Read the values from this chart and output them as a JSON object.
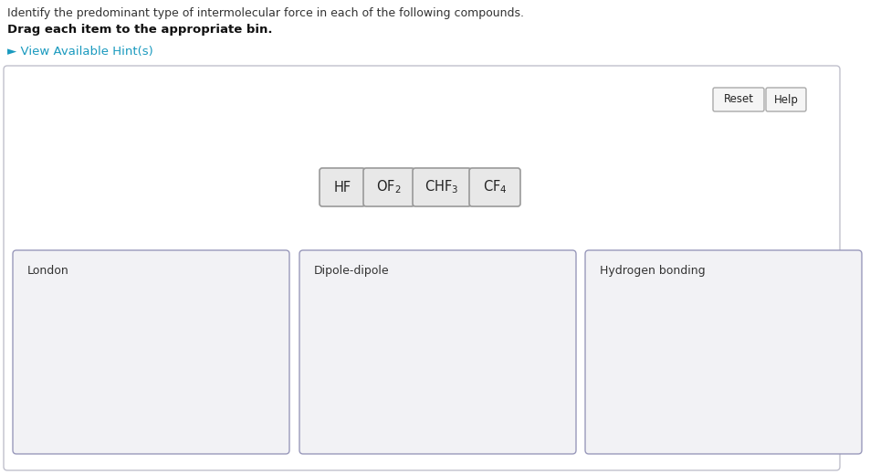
{
  "title_line1": "Identify the predominant type of intermolecular force in each of the following compounds.",
  "title_line2": "Drag each item to the appropriate bin.",
  "hint_text": "► View Available Hint(s)",
  "hint_color": "#1a9abf",
  "reset_text": "Reset",
  "help_text": "Help",
  "compound_labels": [
    "HF",
    "OF$_2$",
    "CHF$_3$",
    "CF$_4$"
  ],
  "bins": [
    "London",
    "Dipole-dipole",
    "Hydrogen bonding"
  ],
  "bg_color": "#ffffff",
  "bin_box_bg": "#f2f2f5",
  "bin_box_border": "#9999bb",
  "compound_bg": "#e8e8e8",
  "compound_border": "#999999",
  "main_box_border": "#c0c0cc",
  "reset_help_border": "#aaaaaa",
  "reset_help_bg": "#f5f5f5"
}
